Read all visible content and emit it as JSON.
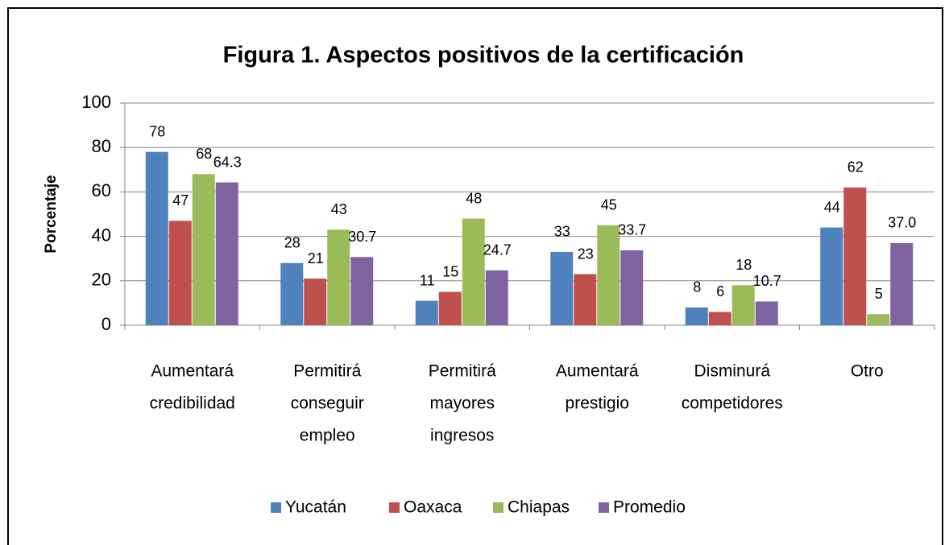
{
  "chart_data": {
    "type": "bar",
    "title": "Figura 1. Aspectos positivos de la certificación",
    "y_label": "Porcentaje",
    "categories": [
      [
        "Aumentará",
        "credibilidad"
      ],
      [
        "Permitirá",
        "conseguir",
        "empleo"
      ],
      [
        "Permitirá",
        "mayores",
        "ingresos"
      ],
      [
        "Aumentará",
        "prestigio"
      ],
      [
        "Disminurá",
        "competidores"
      ],
      [
        "Otro"
      ]
    ],
    "series": [
      {
        "name": "Yucatán",
        "color": "#4f81bd",
        "values": [
          78,
          28,
          11,
          33,
          8,
          44
        ]
      },
      {
        "name": "Oaxaca",
        "color": "#c0504d",
        "values": [
          47,
          21,
          15,
          23,
          6,
          62
        ]
      },
      {
        "name": "Chiapas",
        "color": "#9bbb59",
        "values": [
          68,
          43,
          48,
          45,
          18,
          5
        ]
      },
      {
        "name": "Promedio",
        "color": "#8064a2",
        "values": [
          64.3,
          30.7,
          24.7,
          33.7,
          10.7,
          37.0
        ],
        "value_labels": [
          "64.3",
          "30.7",
          "24.7",
          "33.7",
          "10.7",
          "37.0"
        ]
      }
    ],
    "ylim": [
      0,
      100
    ],
    "yticks": [
      0,
      20,
      40,
      60,
      80,
      100
    ],
    "grid": true,
    "legend": "bottom"
  }
}
